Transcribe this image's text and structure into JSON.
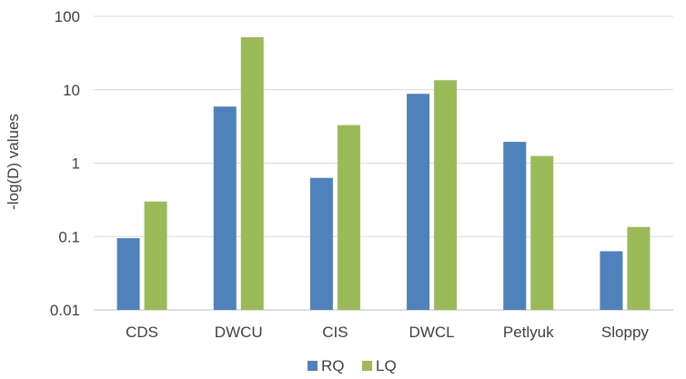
{
  "chart_data": {
    "type": "bar",
    "y_scale": "log",
    "ylim": [
      0.01,
      100
    ],
    "y_ticks": [
      "0.01",
      "0.1",
      "1",
      "10",
      "100"
    ],
    "ylabel": "-log(D) values",
    "xlabel": "",
    "title": "",
    "grid": true,
    "legend_position": "bottom",
    "categories": [
      "CDS",
      "DWCU",
      "CIS",
      "DWCL",
      "Petlyuk",
      "Sloppy"
    ],
    "series": [
      {
        "name": "RQ",
        "color": "#4F81BD",
        "values": [
          0.095,
          5.9,
          0.63,
          8.8,
          1.95,
          0.063
        ]
      },
      {
        "name": "LQ",
        "color": "#9BBB59",
        "values": [
          0.3,
          52,
          3.3,
          13.5,
          1.25,
          0.135
        ]
      }
    ]
  }
}
